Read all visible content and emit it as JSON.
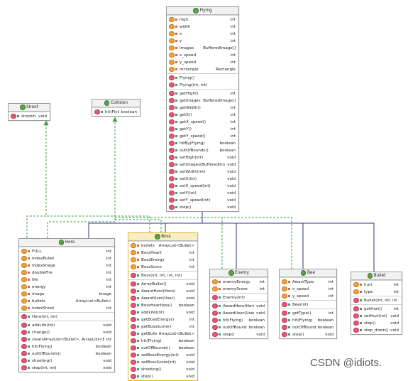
{
  "classes": {
    "flying": {
      "name": "Flying",
      "fields": [
        {
          "name": "high",
          "type": "int"
        },
        {
          "name": "width",
          "type": "int"
        },
        {
          "name": "x",
          "type": "int"
        },
        {
          "name": "y",
          "type": "int"
        },
        {
          "name": "images",
          "type": "BufferedImage[]"
        },
        {
          "name": "x_speed",
          "type": "int"
        },
        {
          "name": "y_speed",
          "type": "int"
        },
        {
          "name": "rectangle",
          "type": "Rectangle"
        }
      ],
      "constructors": [
        {
          "name": "Flying()",
          "type": ""
        },
        {
          "name": "Flying(int, int)",
          "type": ""
        }
      ],
      "methods": [
        {
          "name": "getHigh()",
          "type": "int"
        },
        {
          "name": "getImages()",
          "type": "BufferedImage[]"
        },
        {
          "name": "getWidth()",
          "type": "int"
        },
        {
          "name": "getX()",
          "type": "int"
        },
        {
          "name": "getX_speed()",
          "type": "int"
        },
        {
          "name": "getY()",
          "type": "int"
        },
        {
          "name": "getY_speed()",
          "type": "int"
        },
        {
          "name": "hitBy(Flying)",
          "type": "boolean"
        },
        {
          "name": "outOfBounds()",
          "type": "boolean"
        },
        {
          "name": "setHigh(int)",
          "type": "void"
        },
        {
          "name": "setImages(BufferedImage[])",
          "type": "void"
        },
        {
          "name": "setWidth(int)",
          "type": "void"
        },
        {
          "name": "setX(int)",
          "type": "void"
        },
        {
          "name": "setX_speed(int)",
          "type": "void"
        },
        {
          "name": "setY(int)",
          "type": "void"
        },
        {
          "name": "setY_speed(int)",
          "type": "void"
        },
        {
          "name": "step()",
          "type": "void"
        }
      ]
    },
    "shoot": {
      "name": "Shoot",
      "methods": [
        {
          "name": "shooting()",
          "type": "void"
        }
      ]
    },
    "collision": {
      "name": "Collision",
      "methods": [
        {
          "name": "hit(Flying)",
          "type": "boolean"
        }
      ]
    },
    "hero": {
      "name": "Hero",
      "fields": [
        {
          "name": "FULL",
          "type": "int"
        },
        {
          "name": "indexBullet",
          "type": "int"
        },
        {
          "name": "indexImage",
          "type": "int"
        },
        {
          "name": "doubleFire",
          "type": "int"
        },
        {
          "name": "life",
          "type": "int"
        },
        {
          "name": "energy",
          "type": "int"
        },
        {
          "name": "image",
          "type": "Image"
        },
        {
          "name": "bullets",
          "type": "ArrayList<Bullet>"
        },
        {
          "name": "indexShoot",
          "type": "int"
        }
      ],
      "constructors": [
        {
          "name": "Hero(int, int)",
          "type": ""
        }
      ],
      "methods": [
        {
          "name": "addLife(int)",
          "type": "void"
        },
        {
          "name": "change()",
          "type": "void"
        },
        {
          "name": "clear(ArrayList<Bullet>, ArrayList<Enemy>)",
          "type": "int"
        },
        {
          "name": "hit(Flying)",
          "type": "boolean"
        },
        {
          "name": "outOfBounds()",
          "type": "boolean"
        },
        {
          "name": "shooting()",
          "type": "void"
        },
        {
          "name": "step(int, int)",
          "type": "void"
        }
      ]
    },
    "boss": {
      "name": "Boss",
      "fields": [
        {
          "name": "bullets",
          "type": "ArrayList<Bullet>"
        },
        {
          "name": "BossHeart",
          "type": "int"
        },
        {
          "name": "BossEnergy",
          "type": "int"
        },
        {
          "name": "BossScore",
          "type": "int"
        }
      ],
      "constructors": [
        {
          "name": "Boss(int, int, int, int)",
          "type": ""
        }
      ],
      "methods": [
        {
          "name": "ArrayBullet()",
          "type": "void"
        },
        {
          "name": "AwardHero(Hero)",
          "type": "void"
        },
        {
          "name": "AwardUser(User)",
          "type": "void"
        },
        {
          "name": "BossHeartless()",
          "type": "boolean"
        },
        {
          "name": "addLife(int)",
          "type": "void"
        },
        {
          "name": "getBossEnergy()",
          "type": "int"
        },
        {
          "name": "getBossScore()",
          "type": "int"
        },
        {
          "name": "getBullets()",
          "type": "ArrayList<Bullet>"
        },
        {
          "name": "hit(Flying)",
          "type": "boolean"
        },
        {
          "name": "outOfBounds()",
          "type": "boolean"
        },
        {
          "name": "setBossEnergy(int)",
          "type": "void"
        },
        {
          "name": "setBossScore(int)",
          "type": "void"
        },
        {
          "name": "shooting()",
          "type": "void"
        },
        {
          "name": "step()",
          "type": "void"
        }
      ]
    },
    "enemy": {
      "name": "Enemy",
      "fields": [
        {
          "name": "enemyEnergy",
          "type": "int"
        },
        {
          "name": "enemyScore",
          "type": "int"
        }
      ],
      "constructors": [
        {
          "name": "Enemy(int)",
          "type": ""
        }
      ],
      "methods": [
        {
          "name": "AwardHero(Hero)",
          "type": "void"
        },
        {
          "name": "AwardUser(User)",
          "type": "void"
        },
        {
          "name": "hit(Flying)",
          "type": "boolean"
        },
        {
          "name": "outOfBounds()",
          "type": "boolean"
        },
        {
          "name": "step()",
          "type": "void"
        }
      ]
    },
    "bee": {
      "name": "Bee",
      "fields": [
        {
          "name": "AwardType",
          "type": "int"
        },
        {
          "name": "x_speed",
          "type": "int"
        },
        {
          "name": "y_speed",
          "type": "int"
        }
      ],
      "constructors": [
        {
          "name": "Bee(int)",
          "type": ""
        }
      ],
      "methods": [
        {
          "name": "getType()",
          "type": "int"
        },
        {
          "name": "hit(Flying)",
          "type": "boolean"
        },
        {
          "name": "outOfBounds()",
          "type": "boolean"
        },
        {
          "name": "step()",
          "type": "void"
        }
      ]
    },
    "bullet": {
      "name": "Bullet",
      "fields": [
        {
          "name": "hurt",
          "type": "int"
        },
        {
          "name": "type",
          "type": "int"
        }
      ],
      "constructors": [
        {
          "name": "Bullet(int, int, int, int)",
          "type": ""
        }
      ],
      "methods": [
        {
          "name": "getHurt()",
          "type": "int"
        },
        {
          "name": "setHurt(int)",
          "type": "void"
        },
        {
          "name": "step()",
          "type": "void"
        },
        {
          "name": "step_down()",
          "type": "void"
        }
      ]
    }
  },
  "watermark": "CSDN @idiots.",
  "colors": {
    "inheritance": "#33338c",
    "realization": "#3aa34a",
    "class_icon": "#5ba24a",
    "field_icon": "#f0a23a",
    "method_icon": "#e0587a",
    "selected_border": "#e8b422"
  }
}
